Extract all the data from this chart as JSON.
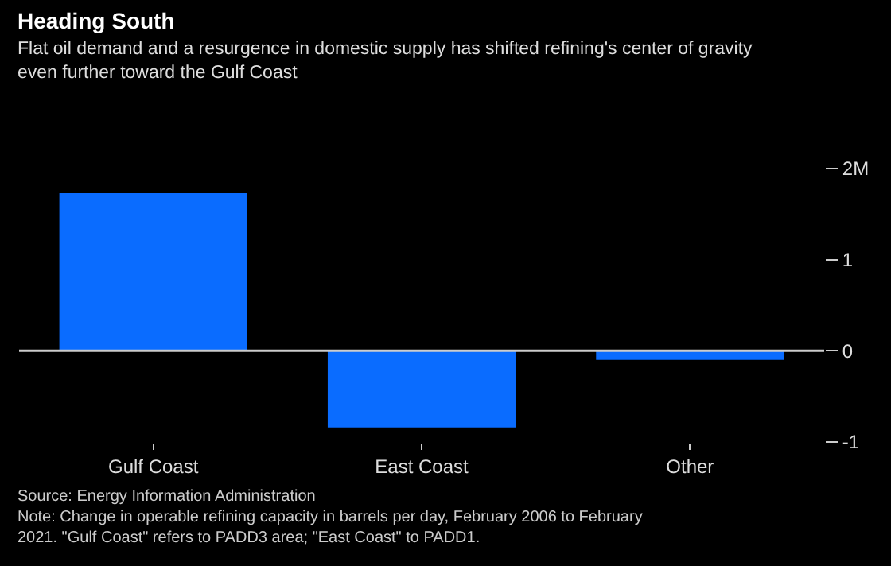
{
  "chart_data": {
    "type": "bar",
    "title": "Heading South",
    "subtitle": "Flat oil demand and a resurgence in domestic supply has shifted refining's center of gravity even further toward the Gulf Coast",
    "categories": [
      "Gulf Coast",
      "East Coast",
      "Other"
    ],
    "values": [
      1.73,
      -0.84,
      -0.1
    ],
    "color": "#0a6cff",
    "ylim": [
      -1,
      2
    ],
    "yticks": [
      {
        "value": 2,
        "label": "2M"
      },
      1,
      0,
      -1
    ],
    "grid": false,
    "ref_lines": [
      {
        "axis": "y",
        "value": 0,
        "color": "#cccccc"
      }
    ],
    "annotations": [
      "Source: Energy Information Administration",
      "Note: Change in operable refining capacity in barrels per day, February 2006 to February 2021. \"Gulf Coast\" refers to PADD3 area; \"East Coast\" to PADD1."
    ]
  }
}
